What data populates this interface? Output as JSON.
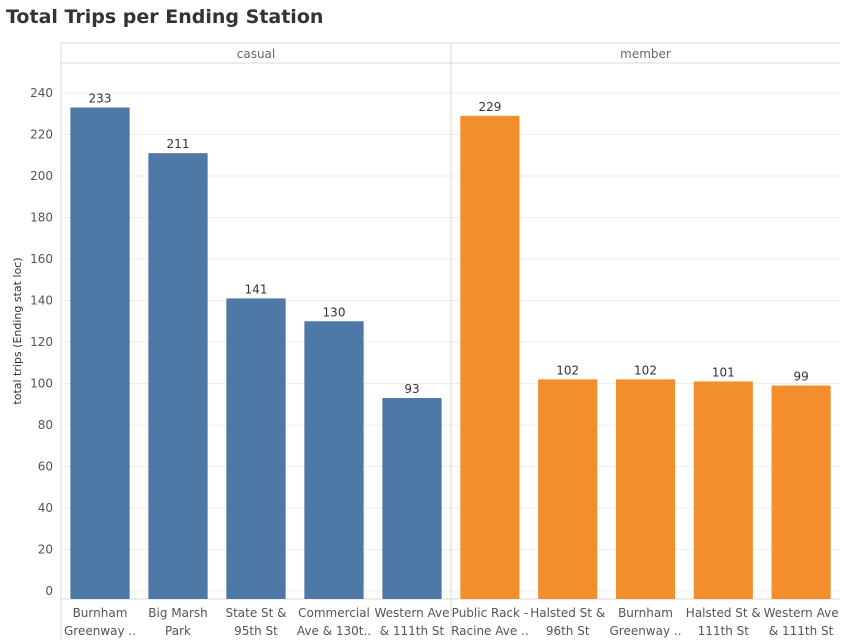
{
  "chart_data": {
    "type": "bar",
    "title": "Total Trips per Ending Station",
    "ylabel": "total trips (Ending stat loc)",
    "ylim": [
      0,
      250
    ],
    "yticks": [
      0,
      20,
      40,
      60,
      80,
      100,
      120,
      140,
      160,
      180,
      200,
      220,
      240
    ],
    "grid": true,
    "panels": [
      {
        "name": "casual",
        "color": "#4E79A7",
        "categories": [
          [
            "Burnham",
            "Greenway .."
          ],
          [
            "Big Marsh",
            "Park"
          ],
          [
            "State St &",
            "95th St"
          ],
          [
            "Commercial",
            "Ave & 130t.."
          ],
          [
            "Western Ave",
            "& 111th St"
          ]
        ],
        "values": [
          233,
          211,
          141,
          130,
          93
        ]
      },
      {
        "name": "member",
        "color": "#F28E2B",
        "categories": [
          [
            "Public Rack -",
            "Racine Ave .."
          ],
          [
            "Halsted St &",
            "96th St"
          ],
          [
            "Burnham",
            "Greenway .."
          ],
          [
            "Halsted St &",
            "111th St"
          ],
          [
            "Western Ave",
            "& 111th St"
          ]
        ],
        "values": [
          229,
          102,
          102,
          101,
          99
        ]
      }
    ]
  }
}
